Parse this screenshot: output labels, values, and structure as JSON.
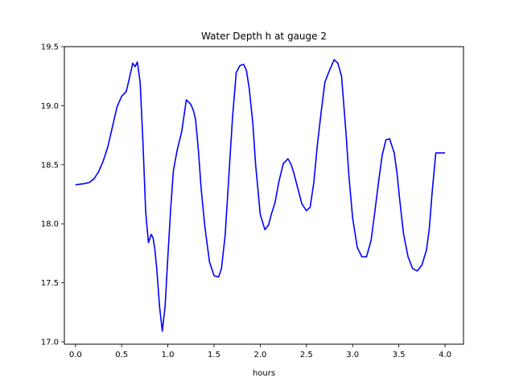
{
  "chart_data": {
    "type": "line",
    "title": "Water Depth h at gauge 2",
    "xlabel": "hours",
    "ylabel": "",
    "xlim": [
      -0.12,
      4.2
    ],
    "ylim": [
      16.98,
      19.5
    ],
    "x_ticks": [
      0.0,
      0.5,
      1.0,
      1.5,
      2.0,
      2.5,
      3.0,
      3.5,
      4.0
    ],
    "x_tick_labels": [
      "0.0",
      "0.5",
      "1.0",
      "1.5",
      "2.0",
      "2.5",
      "3.0",
      "3.5",
      "4.0"
    ],
    "y_ticks": [
      17.0,
      17.5,
      18.0,
      18.5,
      19.0,
      19.5
    ],
    "y_tick_labels": [
      "17.0",
      "17.5",
      "18.0",
      "18.5",
      "19.0",
      "19.5"
    ],
    "grid": false,
    "series": [
      {
        "color": "#0000ff",
        "x": [
          0.0,
          0.1,
          0.15,
          0.2,
          0.25,
          0.3,
          0.35,
          0.4,
          0.45,
          0.5,
          0.55,
          0.58,
          0.62,
          0.645,
          0.67,
          0.7,
          0.73,
          0.76,
          0.79,
          0.82,
          0.84,
          0.86,
          0.88,
          0.91,
          0.94,
          0.97,
          1.0,
          1.03,
          1.06,
          1.1,
          1.15,
          1.2,
          1.25,
          1.28,
          1.3,
          1.33,
          1.36,
          1.4,
          1.45,
          1.5,
          1.55,
          1.58,
          1.62,
          1.66,
          1.7,
          1.74,
          1.78,
          1.82,
          1.85,
          1.88,
          1.92,
          1.95,
          2.0,
          2.05,
          2.09,
          2.12,
          2.16,
          2.2,
          2.25,
          2.3,
          2.33,
          2.36,
          2.4,
          2.45,
          2.5,
          2.54,
          2.58,
          2.62,
          2.66,
          2.7,
          2.75,
          2.8,
          2.84,
          2.88,
          2.9,
          2.93,
          2.96,
          3.0,
          3.05,
          3.1,
          3.15,
          3.2,
          3.24,
          3.28,
          3.32,
          3.36,
          3.4,
          3.45,
          3.48,
          3.51,
          3.55,
          3.6,
          3.65,
          3.7,
          3.75,
          3.8,
          3.83,
          3.86,
          3.9,
          3.95,
          4.0
        ],
        "y": [
          18.33,
          18.34,
          18.35,
          18.38,
          18.44,
          18.53,
          18.65,
          18.82,
          18.99,
          19.08,
          19.12,
          19.22,
          19.36,
          19.33,
          19.37,
          19.2,
          18.7,
          18.1,
          17.84,
          17.91,
          17.88,
          17.78,
          17.62,
          17.3,
          17.09,
          17.3,
          17.72,
          18.12,
          18.45,
          18.62,
          18.78,
          19.05,
          19.01,
          18.95,
          18.88,
          18.63,
          18.3,
          17.98,
          17.68,
          17.56,
          17.55,
          17.62,
          17.9,
          18.4,
          18.9,
          19.28,
          19.34,
          19.35,
          19.3,
          19.15,
          18.85,
          18.5,
          18.08,
          17.95,
          17.99,
          18.08,
          18.18,
          18.35,
          18.51,
          18.55,
          18.51,
          18.44,
          18.32,
          18.17,
          18.11,
          18.14,
          18.35,
          18.68,
          18.95,
          19.2,
          19.3,
          19.39,
          19.36,
          19.25,
          19.05,
          18.75,
          18.4,
          18.05,
          17.8,
          17.72,
          17.72,
          17.86,
          18.1,
          18.35,
          18.58,
          18.71,
          18.72,
          18.6,
          18.43,
          18.2,
          17.92,
          17.72,
          17.62,
          17.6,
          17.65,
          17.78,
          17.96,
          18.26,
          18.6,
          18.6,
          18.6
        ]
      }
    ]
  }
}
